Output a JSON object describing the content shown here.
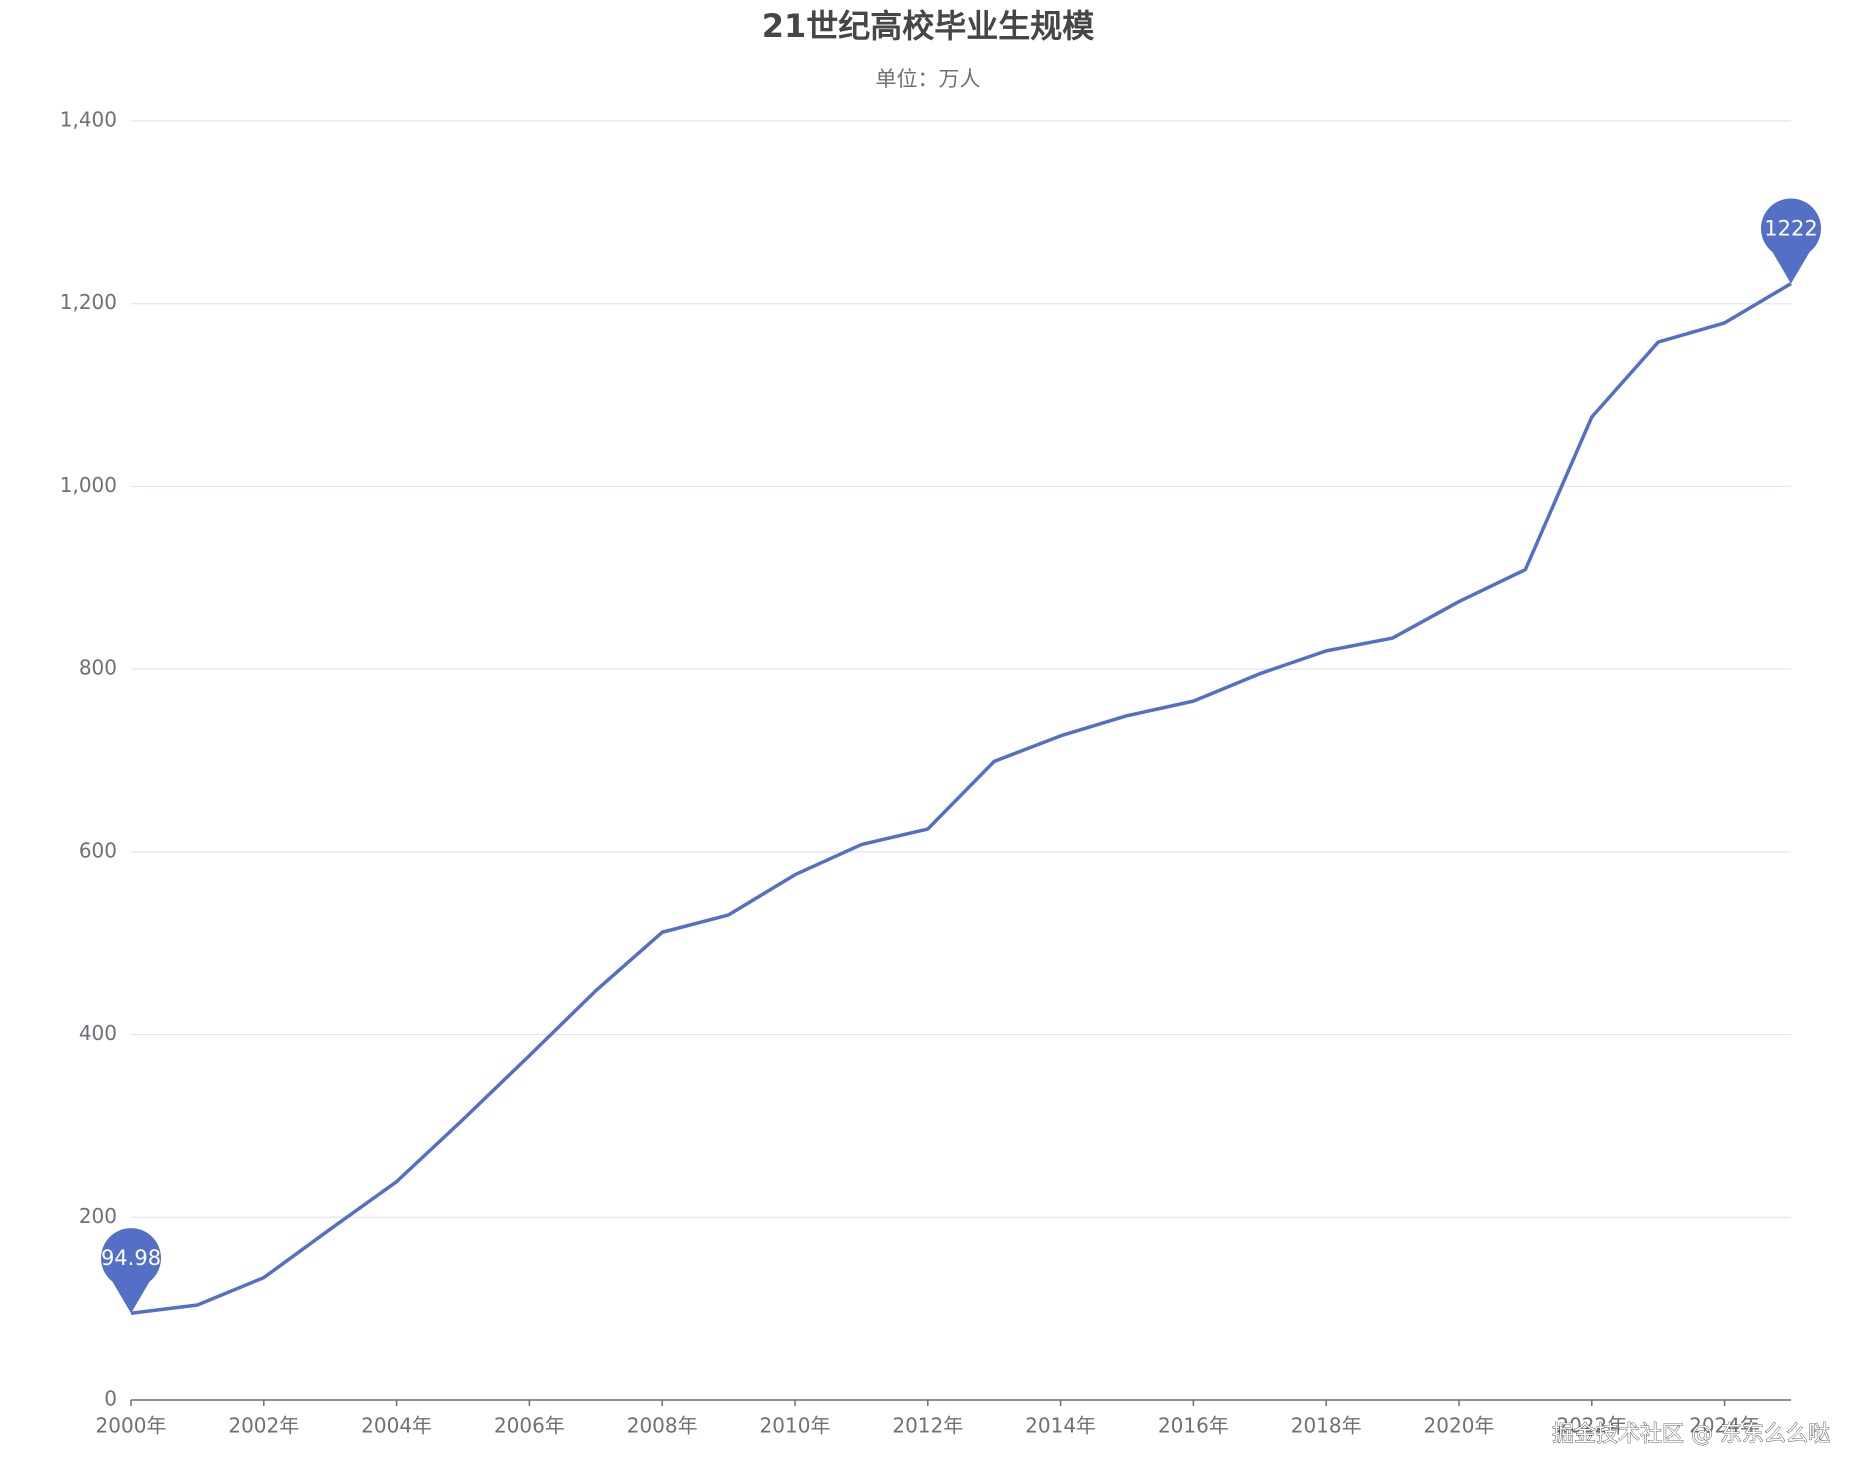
{
  "chart_data": {
    "type": "line",
    "title": "21世纪高校毕业生规模",
    "subtitle": "单位：万人",
    "categories": [
      "2000年",
      null,
      "2002年",
      null,
      "2004年",
      null,
      "2006年",
      null,
      "2008年",
      null,
      "2010年",
      null,
      "2012年",
      null,
      "2014年",
      null,
      "2016年",
      null,
      "2018年",
      null,
      "2020年",
      null,
      "2022年",
      null,
      "2024年",
      null
    ],
    "values": [
      94.98,
      104,
      134,
      187,
      239,
      307,
      377,
      448,
      512,
      531,
      575,
      608,
      625,
      699,
      727,
      749,
      765,
      795,
      820,
      834,
      874,
      909,
      1076,
      1158,
      1179,
      1222
    ],
    "color": "#5470c6",
    "ylim": [
      0,
      1400
    ],
    "yticks": [
      0,
      200,
      400,
      600,
      800,
      {
        "value": 1000,
        "label": "1,000"
      },
      {
        "value": 1200,
        "label": "1,200"
      },
      {
        "value": 1400,
        "label": "1,400"
      }
    ],
    "grid": true,
    "watermark": "掘金技术社区 @ 东东么么哒"
  }
}
